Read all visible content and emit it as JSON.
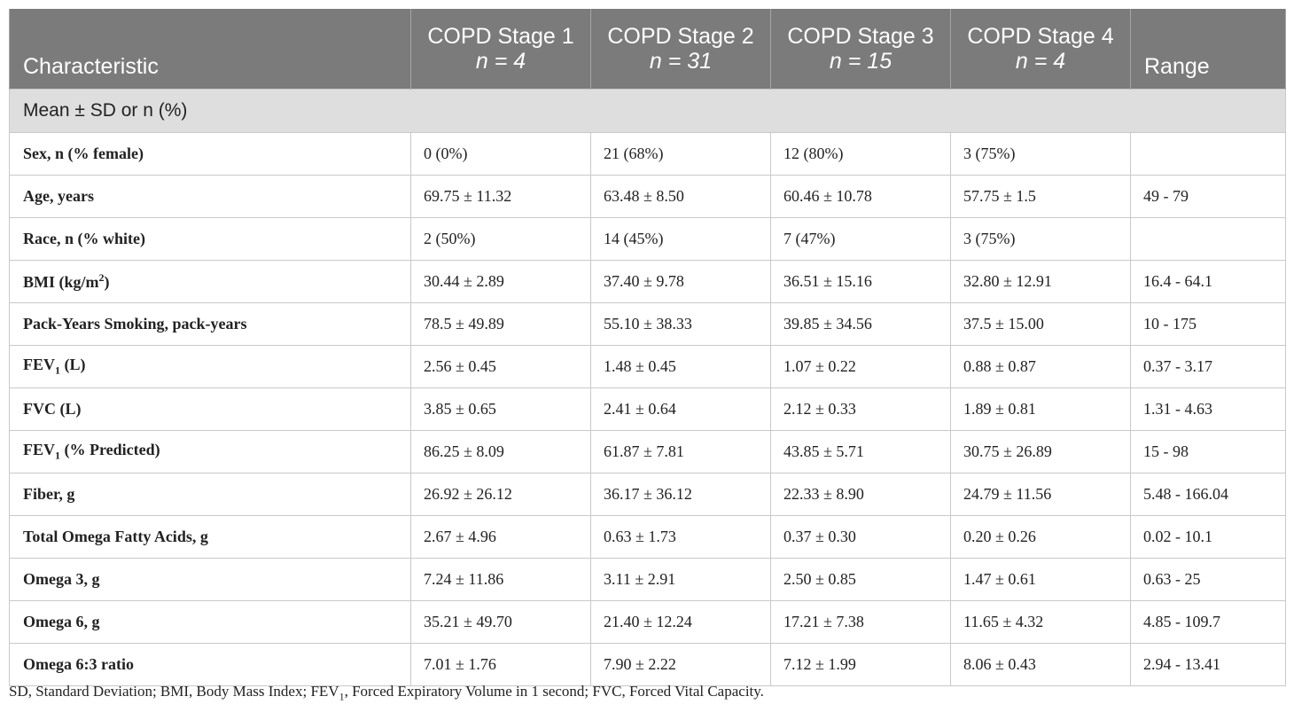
{
  "table": {
    "header": {
      "characteristic": "Characteristic",
      "stages": [
        {
          "label": "COPD Stage 1",
          "n": "n = 4"
        },
        {
          "label": "COPD Stage 2",
          "n": "n = 31"
        },
        {
          "label": "COPD Stage 3",
          "n": "n = 15"
        },
        {
          "label": "COPD Stage 4",
          "n": "n = 4"
        }
      ],
      "range": "Range"
    },
    "subheader": "Mean ± SD or n (%)",
    "rows": [
      {
        "label": "Sex, n (% female)",
        "s1": "0 (0%)",
        "s2": "21 (68%)",
        "s3": "12 (80%)",
        "s4": "3 (75%)",
        "range": ""
      },
      {
        "label": "Age, years",
        "s1": "69.75 ± 11.32",
        "s2": "63.48 ± 8.50",
        "s3": "60.46 ± 10.78",
        "s4": "57.75 ± 1.5",
        "range": "49 - 79"
      },
      {
        "label": "Race, n (% white)",
        "s1": "2 (50%)",
        "s2": "14 (45%)",
        "s3": "7 (47%)",
        "s4": "3 (75%)",
        "range": ""
      },
      {
        "label_pre": "BMI (kg/m",
        "label_sup": "2",
        "label_post": ")",
        "s1": "30.44 ± 2.89",
        "s2": "37.40 ± 9.78",
        "s3": "36.51 ± 15.16",
        "s4": "32.80 ± 12.91",
        "range": "16.4 - 64.1"
      },
      {
        "label": "Pack-Years Smoking, pack-years",
        "s1": "78.5 ± 49.89",
        "s2": "55.10 ± 38.33",
        "s3": "39.85 ± 34.56",
        "s4": "37.5 ± 15.00",
        "range": "10 - 175"
      },
      {
        "label_pre": "FEV",
        "label_sub": "1",
        "label_post": " (L)",
        "s1": "2.56 ± 0.45",
        "s2": "1.48 ± 0.45",
        "s3": "1.07 ± 0.22",
        "s4": "0.88 ± 0.87",
        "range": "0.37 - 3.17"
      },
      {
        "label": "FVC (L)",
        "s1": "3.85 ± 0.65",
        "s2": "2.41 ± 0.64",
        "s3": "2.12 ± 0.33",
        "s4": "1.89 ± 0.81",
        "range": "1.31 - 4.63"
      },
      {
        "label_pre": "FEV",
        "label_sub": "1",
        "label_post": " (% Predicted)",
        "s1": "86.25 ± 8.09",
        "s2": "61.87 ± 7.81",
        "s3": "43.85 ± 5.71",
        "s4": "30.75 ± 26.89",
        "range": "15 - 98"
      },
      {
        "label": "Fiber, g",
        "s1": "26.92 ± 26.12",
        "s2": "36.17 ± 36.12",
        "s3": "22.33 ± 8.90",
        "s4": "24.79 ± 11.56",
        "range": "5.48 - 166.04"
      },
      {
        "label": "Total Omega Fatty Acids, g",
        "s1": "2.67 ± 4.96",
        "s2": "0.63 ± 1.73",
        "s3": "0.37 ± 0.30",
        "s4": "0.20 ± 0.26",
        "range": "0.02 - 10.1"
      },
      {
        "label": "Omega 3, g",
        "s1": "7.24 ± 11.86",
        "s2": "3.11 ± 2.91",
        "s3": "2.50 ± 0.85",
        "s4": "1.47 ± 0.61",
        "range": "0.63 - 25"
      },
      {
        "label": "Omega 6, g",
        "s1": "35.21 ± 49.70",
        "s2": "21.40 ± 12.24",
        "s3": "17.21 ± 7.38",
        "s4": "11.65 ± 4.32",
        "range": "4.85 - 109.7"
      },
      {
        "label": "Omega 6:3 ratio",
        "s1": "7.01 ± 1.76",
        "s2": "7.90 ± 2.22",
        "s3": "7.12 ± 1.99",
        "s4": "8.06 ± 0.43",
        "range": "2.94 - 13.41"
      }
    ]
  },
  "footnote": {
    "pre": "SD, Standard Deviation; BMI, Body Mass Index; FEV",
    "sub": "1",
    "post": ", Forced Expiratory Volume in 1 second; FVC, Forced Vital Capacity."
  },
  "colors": {
    "header_bg": "#7b7b7b",
    "subheader_bg": "#dedede",
    "border": "#c9c9c9"
  }
}
